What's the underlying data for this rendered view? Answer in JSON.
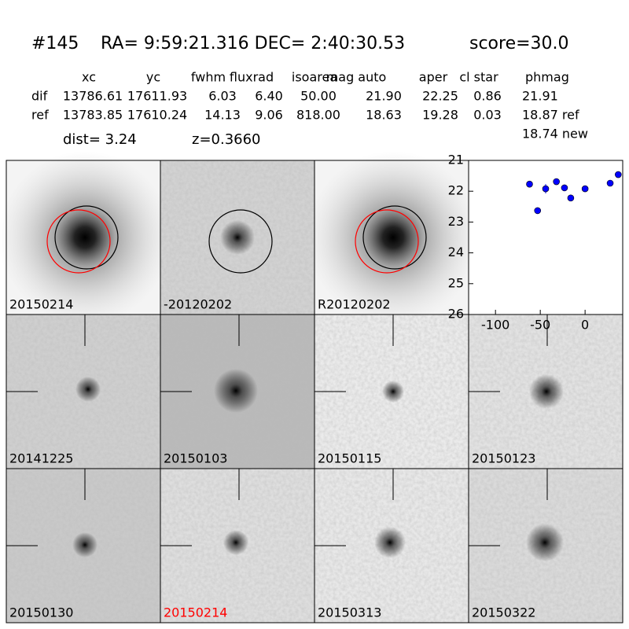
{
  "header": {
    "id": "#145",
    "coords": "RA= 9:59:21.316 DEC= 2:40:30.53",
    "score": "score=30.0"
  },
  "table": {
    "columns": [
      "xc",
      "yc",
      "fwhm",
      "fluxrad",
      "isoarea",
      "mag auto",
      "aper",
      "cl star",
      "phmag"
    ],
    "rows": [
      [
        "dif",
        "13786.61",
        "17611.93",
        "6.03",
        "6.40",
        "50.00",
        "21.90",
        "22.25",
        "0.86",
        "21.91"
      ],
      [
        "ref",
        "13783.85",
        "17610.24",
        "14.13",
        "9.06",
        "818.00",
        "18.63",
        "19.28",
        "0.03",
        "18.87 ref"
      ]
    ],
    "extra": "18.74 new",
    "dist": "dist=  3.24",
    "z": "z=0.3660"
  },
  "panels": [
    {
      "label": "20150214"
    },
    {
      "label": "-20120202"
    },
    {
      "label": "R20120202"
    },
    {
      "label": "20141225"
    },
    {
      "label": "20150103"
    },
    {
      "label": "20150115"
    },
    {
      "label": "20150123"
    },
    {
      "label": "20150130"
    },
    {
      "label": "20150214",
      "color": "#ff0000"
    },
    {
      "label": "20150313"
    },
    {
      "label": "20150322"
    }
  ],
  "chart_data": {
    "type": "scatter",
    "color": "#0000ff",
    "x": [
      -62,
      -53,
      -44,
      -32,
      -23,
      -16,
      0,
      28,
      37
    ],
    "values": [
      21.77,
      22.63,
      21.92,
      21.69,
      21.89,
      22.22,
      21.92,
      21.74,
      21.46
    ],
    "errors": [
      0.04,
      0.06,
      0.15,
      0.04,
      0.05,
      0.1,
      0.04,
      0.04,
      0.04
    ],
    "xlim": [
      -130,
      42
    ],
    "xticks": [
      -100,
      -50,
      0
    ],
    "ylim": [
      26,
      21
    ],
    "yticks": [
      21,
      22,
      23,
      24,
      25,
      26
    ]
  }
}
